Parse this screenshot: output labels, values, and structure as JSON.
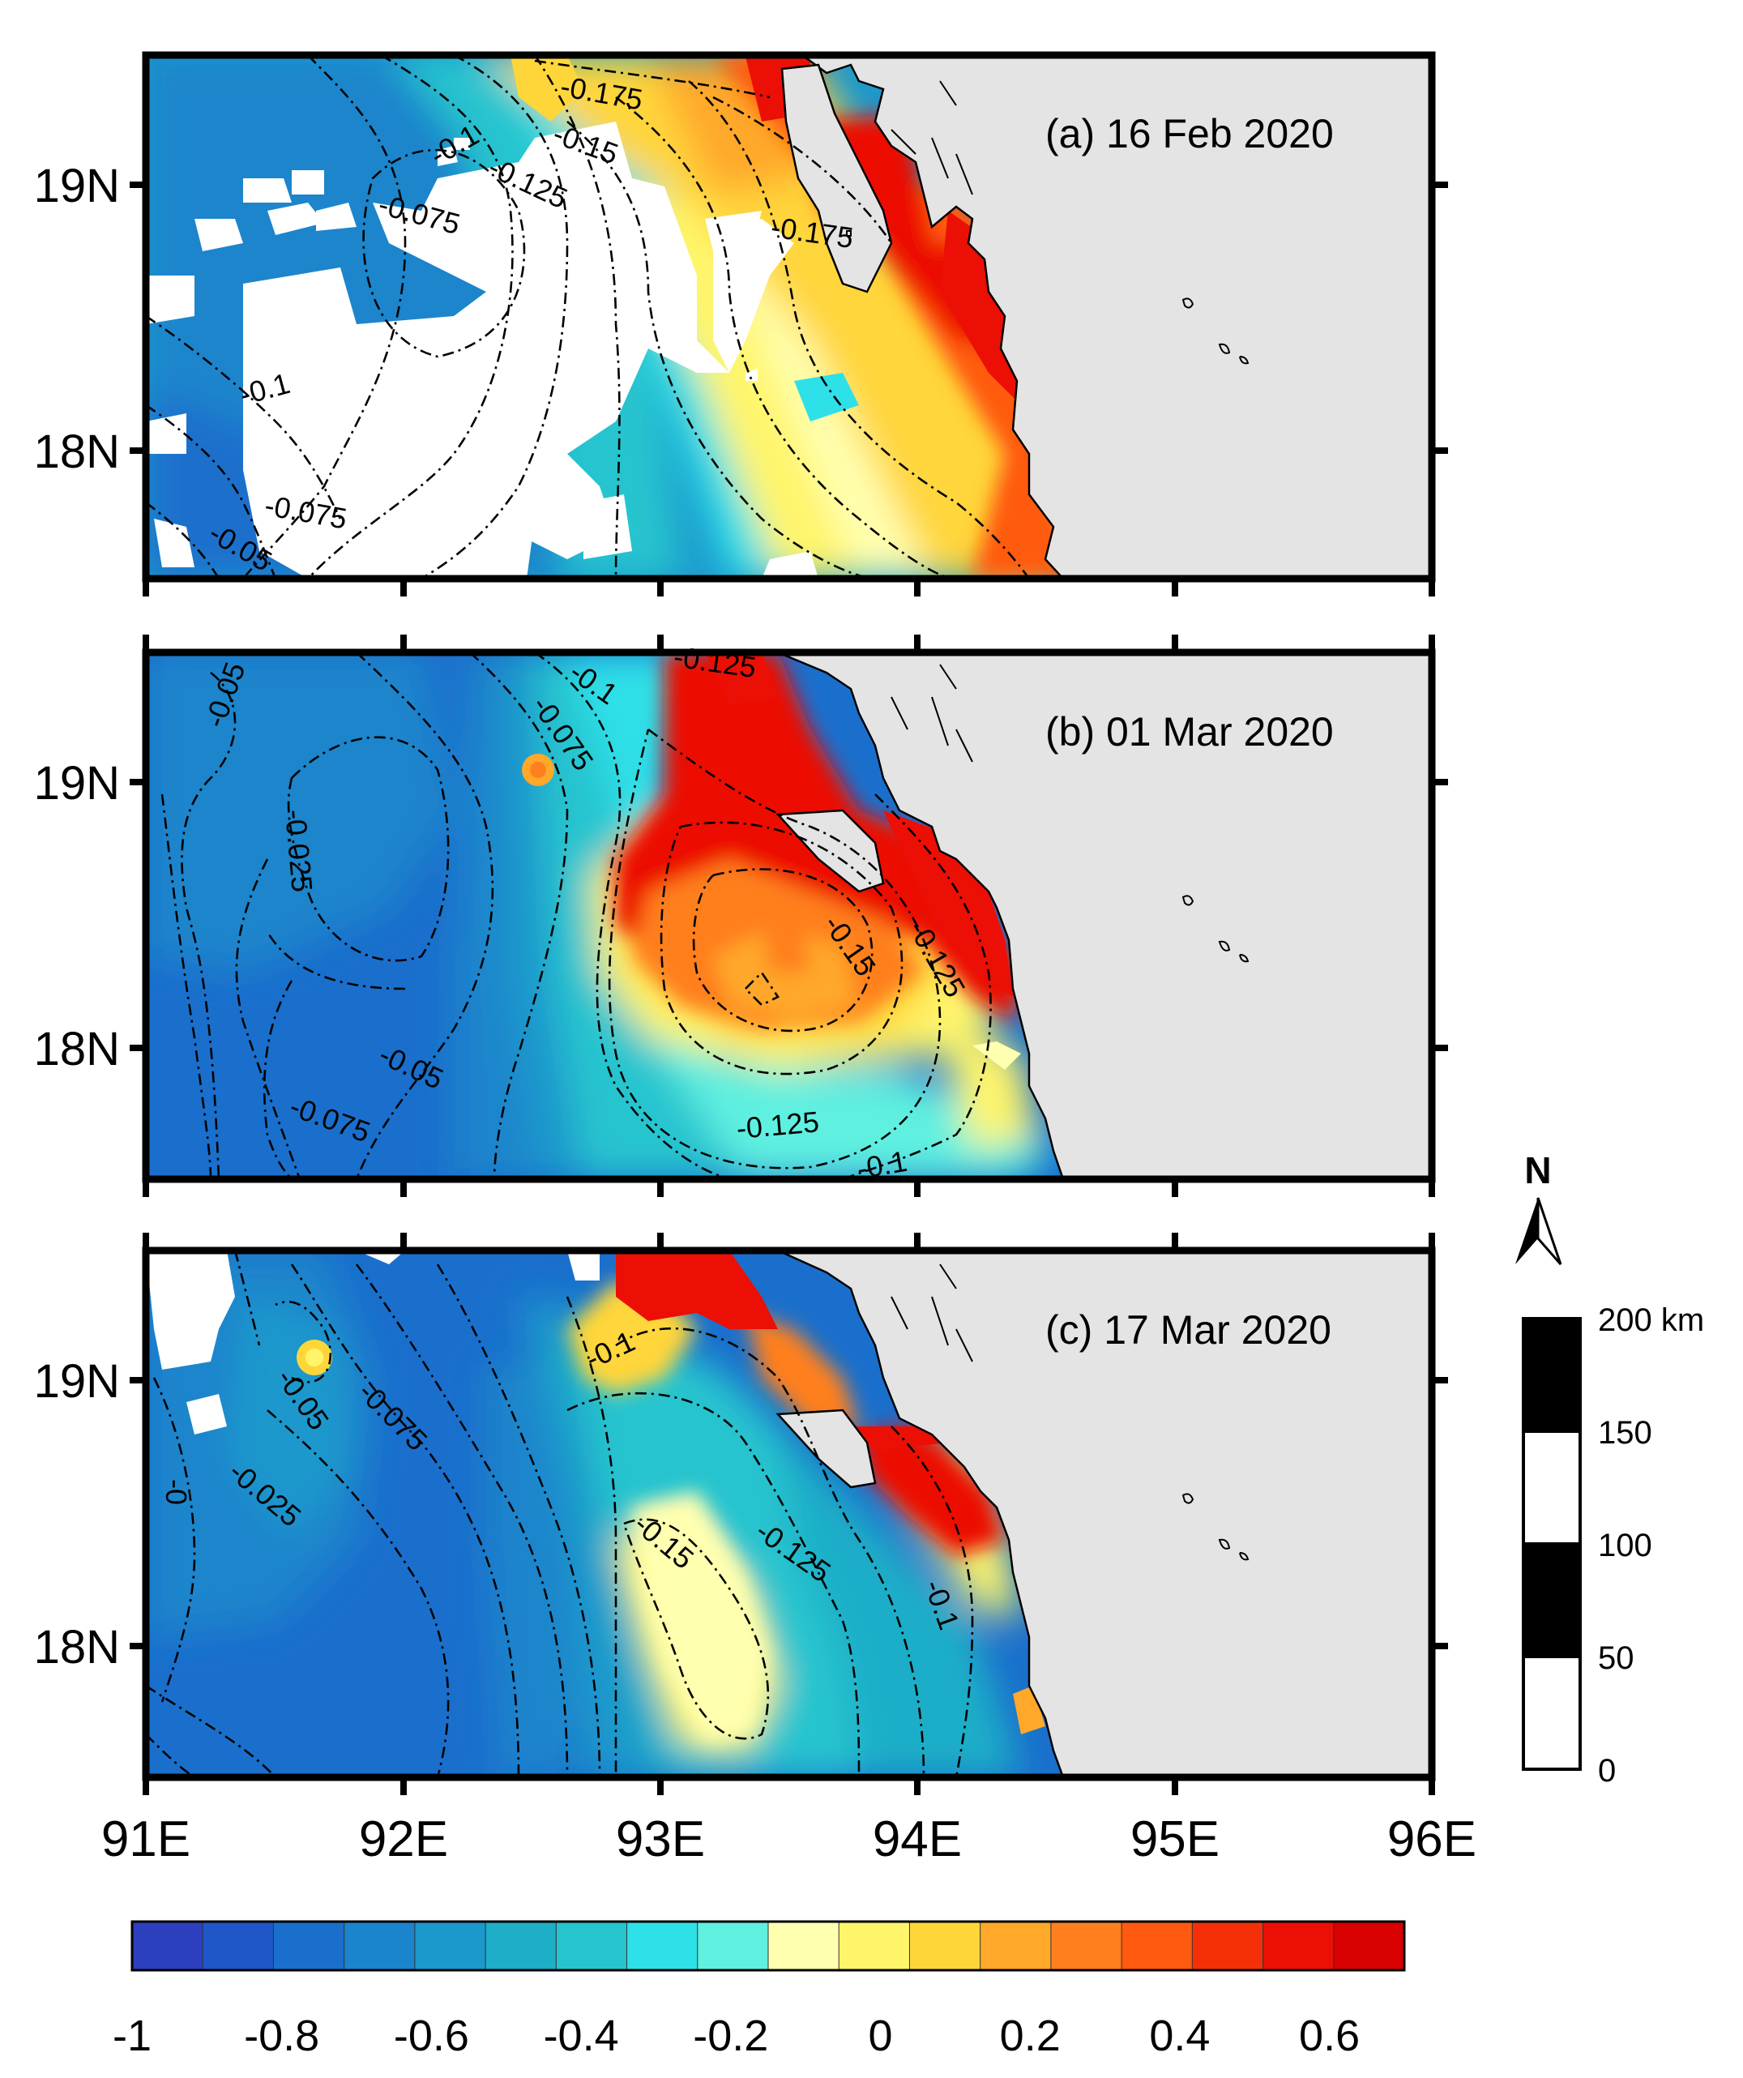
{
  "panels": [
    {
      "id": "a",
      "title": "(a) 16 Feb 2020",
      "contours": [
        {
          "label": "-0.175"
        },
        {
          "label": "-0.15"
        },
        {
          "label": "-0.125"
        },
        {
          "label": "-0.1"
        },
        {
          "label": "-0.075"
        },
        {
          "label": "-0.175"
        },
        {
          "label": "-0.1"
        },
        {
          "label": "-0.075"
        },
        {
          "label": "-0.05"
        }
      ]
    },
    {
      "id": "b",
      "title": "(b) 01 Mar 2020",
      "contours": [
        {
          "label": "-0.125"
        },
        {
          "label": "-0.1"
        },
        {
          "label": "-0.075"
        },
        {
          "label": "-0.05"
        },
        {
          "label": "-0.025"
        },
        {
          "label": "-0.15"
        },
        {
          "label": "-0.125"
        },
        {
          "label": "-0.05"
        },
        {
          "label": "-0.075"
        },
        {
          "label": "-0.125"
        },
        {
          "label": "-0.1"
        }
      ]
    },
    {
      "id": "c",
      "title": "(c) 17 Mar 2020",
      "contours": [
        {
          "label": "-0.1"
        },
        {
          "label": "-0.05"
        },
        {
          "label": "-0.075"
        },
        {
          "label": "-0"
        },
        {
          "label": "-0.025"
        },
        {
          "label": "-0.15"
        },
        {
          "label": "-0.125"
        },
        {
          "label": "-0.1"
        }
      ]
    }
  ],
  "axes": {
    "lat_ticks": [
      "19N",
      "18N"
    ],
    "lon_ticks": [
      "91E",
      "92E",
      "93E",
      "94E",
      "95E",
      "96E"
    ]
  },
  "north_arrow": {
    "label": "N"
  },
  "scale_bar": {
    "labels": [
      "200 km",
      "150",
      "100",
      "50",
      "0"
    ]
  },
  "colorbar": {
    "min": -1,
    "max": 0.7,
    "tick_labels": [
      "-1",
      "-0.8",
      "-0.6",
      "-0.4",
      "-0.2",
      "0",
      "0.2",
      "0.4",
      "0.6"
    ],
    "colors": [
      "#2b3fbf",
      "#1f57c9",
      "#1a6fcc",
      "#1a85cc",
      "#1b98cc",
      "#1eaec8",
      "#25c4cf",
      "#2ee0e8",
      "#5ff0e0",
      "#ffffb0",
      "#fff56a",
      "#ffd63a",
      "#ffa82a",
      "#ff7f1f",
      "#ff5a10",
      "#f53008",
      "#ec0f05",
      "#d80000"
    ]
  },
  "map_colors": {
    "land": "#e4e4e4",
    "no_data": "#ffffff",
    "coast": "#000000"
  }
}
